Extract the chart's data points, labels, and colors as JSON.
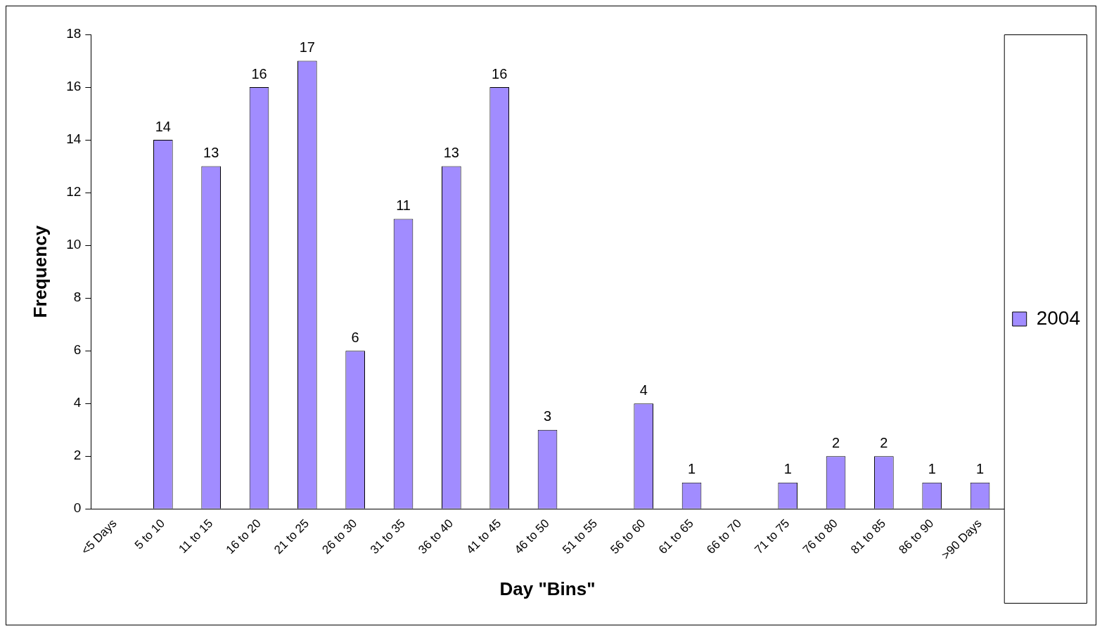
{
  "chart_data": {
    "type": "bar",
    "xlabel": "Day \"Bins\"",
    "ylabel": "Frequency",
    "categories": [
      "<5 Days",
      "5 to 10",
      "11 to 15",
      "16 to 20",
      "21 to 25",
      "26 to 30",
      "31 to 35",
      "36 to 40",
      "41 to 45",
      "46 to 50",
      "51 to 55",
      "56 to 60",
      "61 to 65",
      "66 to 70",
      "71 to 75",
      "76 to 80",
      "81 to 85",
      "86 to 90",
      ">90 Days"
    ],
    "series": [
      {
        "name": "2004",
        "color": "#a18cff",
        "values": [
          null,
          14,
          13,
          16,
          17,
          6,
          11,
          13,
          16,
          3,
          null,
          4,
          1,
          null,
          1,
          2,
          2,
          1,
          1
        ]
      }
    ],
    "ylim": [
      0,
      18
    ],
    "yticks": [
      0,
      2,
      4,
      6,
      8,
      10,
      12,
      14,
      16,
      18
    ],
    "grid": false,
    "legend": "right",
    "data_labels": true
  }
}
